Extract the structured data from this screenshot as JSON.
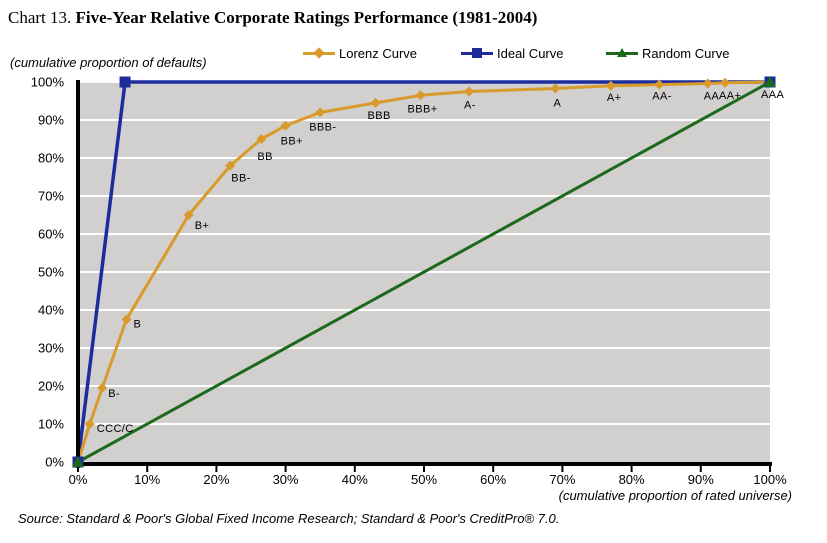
{
  "title": {
    "prefix": "Chart 13. ",
    "main": "Five-Year Relative Corporate Ratings Performance (1981-2004)"
  },
  "legend": [
    {
      "label": "Lorenz Curve",
      "color": "#D89B2B",
      "marker": "diamond"
    },
    {
      "label": "Ideal Curve",
      "color": "#1C2C9C",
      "marker": "square"
    },
    {
      "label": "Random Curve",
      "color": "#1C691C",
      "marker": "triangle"
    }
  ],
  "y_axis_caption": "(cumulative proportion of defaults)",
  "x_axis_caption": "(cumulative proportion of rated universe)",
  "source": "Source: Standard & Poor's Global Fixed Income Research; Standard & Poor's CreditPro® 7.0.",
  "chart_data": {
    "type": "line",
    "title": "Five-Year Relative Corporate Ratings Performance (1981-2004)",
    "xlabel": "(cumulative proportion of rated universe)",
    "ylabel": "(cumulative proportion of defaults)",
    "xlim": [
      0,
      100
    ],
    "ylim": [
      0,
      100
    ],
    "x_ticks": [
      "0%",
      "10%",
      "20%",
      "30%",
      "40%",
      "50%",
      "60%",
      "70%",
      "80%",
      "90%",
      "100%"
    ],
    "y_ticks": [
      "0%",
      "10%",
      "20%",
      "30%",
      "40%",
      "50%",
      "60%",
      "70%",
      "80%",
      "90%",
      "100%"
    ],
    "grid": "horizontal-white-on-gray",
    "plot_bg_color": "#D1D0CE",
    "gridline_color": "#FFFFFF",
    "axis_color": "#000000",
    "legend_position": "top",
    "series": [
      {
        "name": "Lorenz Curve",
        "color": "#D89B2B",
        "marker": "diamond",
        "points": [
          {
            "x": 0,
            "y": 0
          },
          {
            "x": 1.7,
            "y": 10,
            "label": "CCC/C",
            "dx": 7,
            "dy": 8
          },
          {
            "x": 3.5,
            "y": 19.5,
            "label": "B-",
            "dx": 6,
            "dy": 9
          },
          {
            "x": 7,
            "y": 37.5,
            "label": "B",
            "dx": 7,
            "dy": 8
          },
          {
            "x": 16,
            "y": 65,
            "label": "B+",
            "dx": 6,
            "dy": 14
          },
          {
            "x": 22,
            "y": 78,
            "label": "BB-",
            "dx": 1,
            "dy": 16
          },
          {
            "x": 26.5,
            "y": 85,
            "label": "BB",
            "dx": -4,
            "dy": 21
          },
          {
            "x": 30,
            "y": 88.5,
            "label": "BB+",
            "dx": -5,
            "dy": 19
          },
          {
            "x": 35,
            "y": 92,
            "label": "BBB-",
            "dx": -11,
            "dy": 18
          },
          {
            "x": 43,
            "y": 94.5,
            "label": "BBB",
            "dx": -8,
            "dy": 16
          },
          {
            "x": 49.5,
            "y": 96.5,
            "label": "BBB+",
            "dx": -13,
            "dy": 17
          },
          {
            "x": 56.5,
            "y": 97.5,
            "label": "A-",
            "dx": -5,
            "dy": 17
          },
          {
            "x": 69,
            "y": 98.3,
            "label": "A",
            "dx": -2,
            "dy": 18
          },
          {
            "x": 77,
            "y": 99,
            "label": "A+",
            "dx": -4,
            "dy": 15
          },
          {
            "x": 84,
            "y": 99.3,
            "label": "AA-",
            "dx": -7,
            "dy": 15
          },
          {
            "x": 91,
            "y": 99.6,
            "label": "AA",
            "dx": -4,
            "dy": 16
          },
          {
            "x": 93.5,
            "y": 99.8,
            "label": "AA+",
            "dx": -6,
            "dy": 16
          },
          {
            "x": 100,
            "y": 100,
            "label": "AAA",
            "dx": -9,
            "dy": 16
          }
        ]
      },
      {
        "name": "Ideal Curve",
        "color": "#1C2C9C",
        "marker": "square",
        "points": [
          {
            "x": 0,
            "y": 0
          },
          {
            "x": 6.8,
            "y": 100
          },
          {
            "x": 100,
            "y": 100
          }
        ]
      },
      {
        "name": "Random Curve",
        "color": "#1C691C",
        "marker": "triangle",
        "points": [
          {
            "x": 0,
            "y": 0
          },
          {
            "x": 100,
            "y": 100
          }
        ]
      }
    ]
  }
}
